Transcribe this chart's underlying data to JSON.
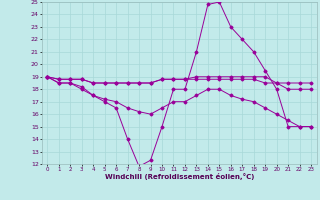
{
  "xlabel": "Windchill (Refroidissement éolien,°C)",
  "bg_color": "#c2eaea",
  "grid_color": "#a8d8d8",
  "line_color": "#990099",
  "xlim_min": -0.5,
  "xlim_max": 23.5,
  "ylim_min": 12,
  "ylim_max": 25,
  "xticks": [
    0,
    1,
    2,
    3,
    4,
    5,
    6,
    7,
    8,
    9,
    10,
    11,
    12,
    13,
    14,
    15,
    16,
    17,
    18,
    19,
    20,
    21,
    22,
    23
  ],
  "yticks": [
    12,
    13,
    14,
    15,
    16,
    17,
    18,
    19,
    20,
    21,
    22,
    23,
    24,
    25
  ],
  "lines": [
    [
      19,
      18.5,
      18.5,
      18,
      17.5,
      17,
      16.5,
      14.0,
      11.8,
      12.3,
      15.0,
      18.0,
      18.0,
      21.0,
      24.8,
      25.0,
      23.0,
      22.0,
      21.0,
      19.5,
      18.0,
      15.0,
      15.0,
      15.0
    ],
    [
      19,
      18.5,
      18.5,
      18.2,
      17.5,
      17.2,
      17.0,
      16.5,
      16.2,
      16.0,
      16.5,
      17.0,
      17.0,
      17.5,
      18.0,
      18.0,
      17.5,
      17.2,
      17.0,
      16.5,
      16.0,
      15.5,
      15.0,
      15.0
    ],
    [
      19,
      18.8,
      18.8,
      18.8,
      18.5,
      18.5,
      18.5,
      18.5,
      18.5,
      18.5,
      18.8,
      18.8,
      18.8,
      19.0,
      19.0,
      19.0,
      19.0,
      19.0,
      19.0,
      19.0,
      18.5,
      18.5,
      18.5,
      18.5
    ],
    [
      19,
      18.8,
      18.8,
      18.8,
      18.5,
      18.5,
      18.5,
      18.5,
      18.5,
      18.5,
      18.8,
      18.8,
      18.8,
      18.8,
      18.8,
      18.8,
      18.8,
      18.8,
      18.8,
      18.5,
      18.5,
      18.0,
      18.0,
      18.0
    ]
  ]
}
